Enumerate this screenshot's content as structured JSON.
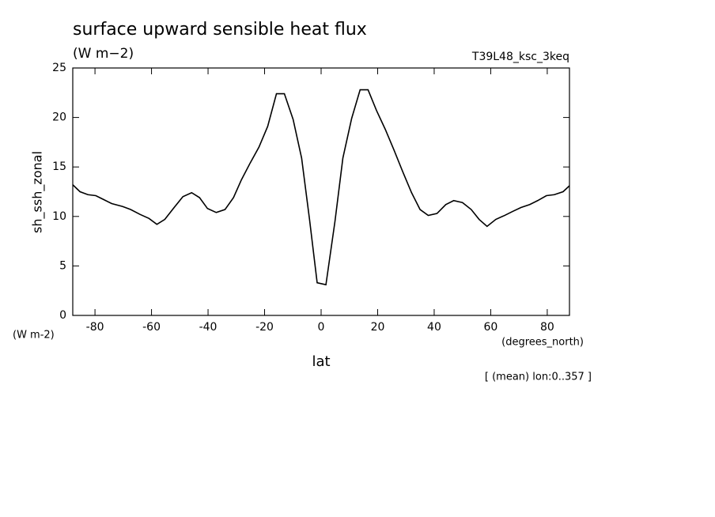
{
  "chart_data": {
    "type": "line",
    "title": "surface upward sensible heat flux",
    "subtitle": "(W m−2)",
    "annotation": "T39L48_ksc_3keq",
    "y_label": "sh_ssh_zonal",
    "y_unit": "(W m-2)",
    "x_unit": "(degrees_north)",
    "x_label": "lat",
    "footnote": "[ (mean) lon:0..357 ]",
    "xlim": [
      -87.86,
      87.86
    ],
    "ylim": [
      0,
      25
    ],
    "xticks": [
      -80,
      -60,
      -40,
      -20,
      0,
      20,
      40,
      60,
      80
    ],
    "yticks": [
      0,
      5,
      10,
      15,
      20,
      25
    ],
    "x": [
      -87.86,
      -85.3,
      -82.5,
      -79.7,
      -76.9,
      -74.1,
      -70.2,
      -67.4,
      -64.0,
      -60.9,
      -58.1,
      -55.3,
      -52.0,
      -48.9,
      -45.8,
      -43.0,
      -40.2,
      -37.1,
      -34.0,
      -31.0,
      -28.2,
      -25.1,
      -22.0,
      -18.9,
      -15.8,
      -13.0,
      -9.9,
      -6.9,
      -4.1,
      -1.4,
      1.7,
      4.9,
      7.7,
      10.8,
      13.8,
      16.6,
      19.6,
      22.7,
      25.8,
      28.9,
      32.0,
      35.0,
      37.9,
      41.0,
      44.1,
      46.9,
      50.0,
      53.1,
      55.9,
      58.7,
      61.8,
      64.9,
      67.7,
      70.7,
      73.8,
      76.6,
      79.7,
      82.5,
      85.6,
      87.86
    ],
    "series": [
      {
        "color": "#000000",
        "values": [
          13.2,
          12.5,
          12.2,
          12.1,
          11.7,
          11.3,
          11.0,
          10.7,
          10.2,
          9.8,
          9.2,
          9.7,
          10.9,
          12.0,
          12.4,
          11.9,
          10.8,
          10.4,
          10.7,
          11.9,
          13.7,
          15.4,
          17.0,
          19.1,
          22.4,
          22.4,
          19.8,
          15.9,
          9.7,
          3.3,
          3.1,
          9.5,
          15.9,
          19.9,
          22.8,
          22.8,
          20.7,
          18.8,
          16.7,
          14.5,
          12.4,
          10.7,
          10.1,
          10.3,
          11.2,
          11.6,
          11.4,
          10.7,
          9.7,
          9.0,
          9.7,
          10.1,
          10.5,
          10.9,
          11.2,
          11.6,
          12.1,
          12.2,
          12.5,
          13.1
        ]
      }
    ]
  }
}
